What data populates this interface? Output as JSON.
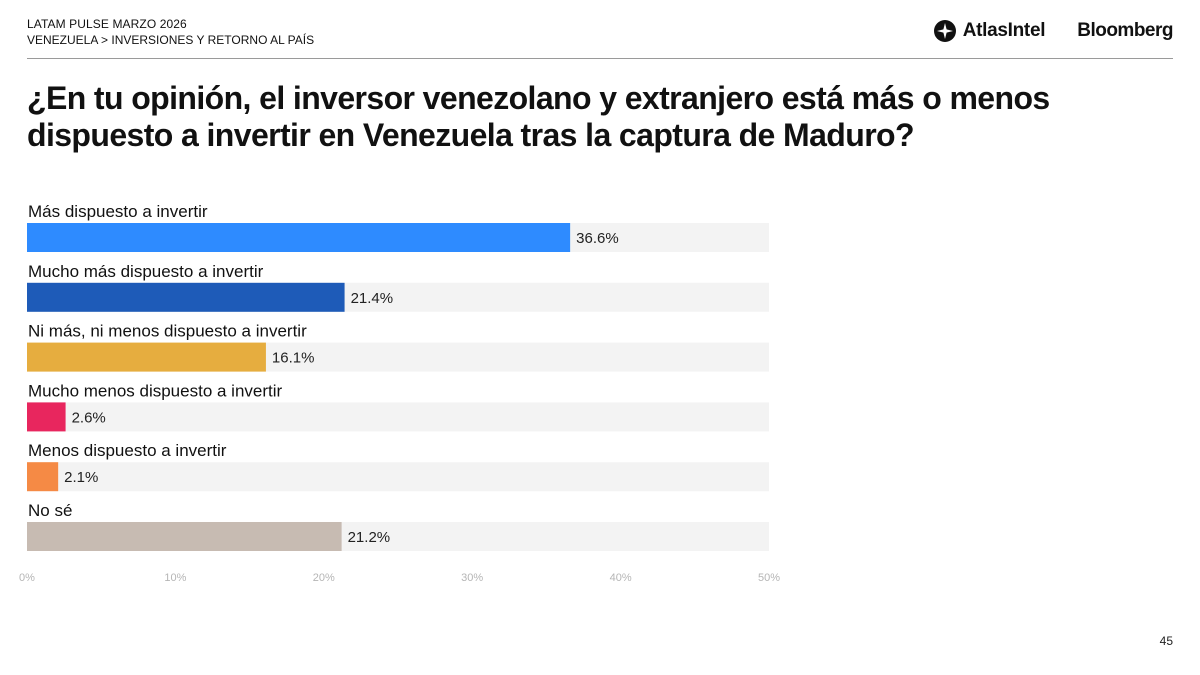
{
  "header": {
    "kicker": "LATAM PULSE MARZO 2026",
    "breadcrumb": "VENEZUELA > INVERSIONES Y RETORNO AL PAÍS",
    "logo_atlas": "AtlasIntel",
    "logo_bloomberg": "Bloomberg"
  },
  "title": "¿En tu opinión, el inversor venezolano y extranjero está más o menos dispuesto a invertir en Venezuela tras la captura de Maduro?",
  "chart_data": {
    "type": "bar",
    "orientation": "horizontal",
    "categories": [
      "Más dispuesto a invertir",
      "Mucho más dispuesto a invertir",
      "Ni más, ni menos dispuesto a invertir",
      "Mucho menos dispuesto a invertir",
      "Menos dispuesto a invertir",
      "No sé"
    ],
    "values": [
      36.6,
      21.4,
      16.1,
      2.6,
      2.1,
      21.2
    ],
    "value_labels": [
      "36.6%",
      "21.4%",
      "16.1%",
      "2.6%",
      "2.1%",
      "21.2%"
    ],
    "colors": [
      "#2e8bff",
      "#1e5bb8",
      "#e6ad3f",
      "#e8265e",
      "#f58a45",
      "#c7bbb2"
    ],
    "track_color": "#f3f3f3",
    "xlim": [
      0,
      50
    ],
    "xticks": [
      0,
      10,
      20,
      30,
      40,
      50
    ],
    "xtick_labels": [
      "0%",
      "10%",
      "20%",
      "30%",
      "40%",
      "50%"
    ],
    "title": "",
    "xlabel": "",
    "ylabel": ""
  },
  "footer": {
    "page_number": "45"
  }
}
